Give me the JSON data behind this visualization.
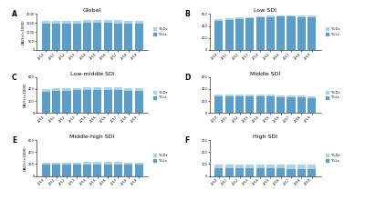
{
  "panels": [
    {
      "label": "A",
      "title": "Global",
      "ylim": [
        0,
        2000
      ],
      "yticks": [
        0,
        500,
        1000,
        1500,
        2000
      ],
      "ylds": [
        155,
        157,
        158,
        160,
        162,
        164,
        165,
        163,
        161,
        160
      ],
      "ylls": [
        1450,
        1460,
        1470,
        1480,
        1490,
        1495,
        1500,
        1480,
        1465,
        1450
      ]
    },
    {
      "label": "B",
      "title": "Low SDI",
      "ylim": [
        0,
        600
      ],
      "yticks": [
        0,
        200,
        400,
        600
      ],
      "ylds": [
        22,
        22,
        23,
        23,
        24,
        25,
        25,
        26,
        25,
        25
      ],
      "ylls": [
        490,
        505,
        518,
        530,
        542,
        550,
        555,
        555,
        550,
        545
      ]
    },
    {
      "label": "C",
      "title": "Low-middle SDI",
      "ylim": [
        0,
        600
      ],
      "yticks": [
        0,
        200,
        400,
        600
      ],
      "ylds": [
        38,
        39,
        39,
        40,
        40,
        41,
        41,
        41,
        41,
        41
      ],
      "ylls": [
        360,
        368,
        373,
        378,
        385,
        388,
        388,
        382,
        374,
        368
      ]
    },
    {
      "label": "D",
      "title": "Middle SDI",
      "ylim": [
        0,
        600
      ],
      "yticks": [
        0,
        200,
        400,
        600
      ],
      "ylds": [
        30,
        30,
        31,
        31,
        32,
        32,
        32,
        31,
        31,
        30
      ],
      "ylls": [
        270,
        270,
        272,
        274,
        275,
        272,
        268,
        262,
        257,
        252
      ]
    },
    {
      "label": "E",
      "title": "Middle-high SDI",
      "ylim": [
        0,
        600
      ],
      "yticks": [
        0,
        200,
        400,
        600
      ],
      "ylds": [
        38,
        38,
        39,
        39,
        40,
        40,
        41,
        41,
        41,
        41
      ],
      "ylls": [
        188,
        188,
        188,
        189,
        189,
        189,
        189,
        188,
        187,
        186
      ]
    },
    {
      "label": "F",
      "title": "High SDI",
      "ylim": [
        0,
        300
      ],
      "yticks": [
        0,
        100,
        200,
        300
      ],
      "ylds": [
        33,
        33,
        34,
        34,
        35,
        35,
        36,
        36,
        36,
        36
      ],
      "ylls": [
        65,
        65,
        65,
        65,
        64,
        63,
        62,
        61,
        60,
        59
      ]
    }
  ],
  "years": [
    2010,
    2011,
    2012,
    2013,
    2014,
    2015,
    2016,
    2017,
    2018,
    2019
  ],
  "color_ylds": "#a8d4e8",
  "color_ylls": "#5b9ec9",
  "ylabel": "DALYs(×1000)"
}
